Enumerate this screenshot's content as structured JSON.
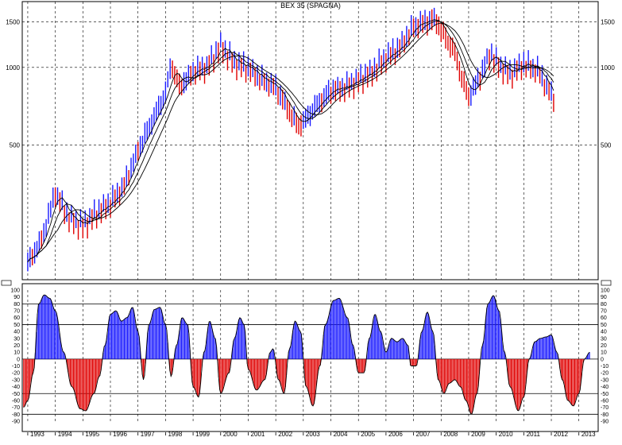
{
  "chart_data": [
    {
      "type": "line",
      "title": "BEX 35 (SPAGNA)",
      "ylabel": "",
      "xlabel": "",
      "scale": "log",
      "ylim": [
        150,
        1800
      ],
      "y_ticks": [
        1500,
        1000,
        500
      ],
      "x_ticks": [
        "1993",
        "1994",
        "1995",
        "1996",
        "1997",
        "1998",
        "1999",
        "2000",
        "2001",
        "2002",
        "2003",
        "2004",
        "2005",
        "2006",
        "2007",
        "2008",
        "2009",
        "2010",
        "2011",
        "2012",
        "2013"
      ],
      "grid": true,
      "bar_colors": {
        "up": "#1a1aff",
        "down": "#e00000"
      },
      "ma_color": "#000000",
      "series": [
        {
          "style": "price-bars",
          "points": [
            [
              1993.0,
              175
            ],
            [
              1993.5,
              215
            ],
            [
              1994.0,
              330
            ],
            [
              1994.5,
              262
            ],
            [
              1995.0,
              245
            ],
            [
              1995.5,
              275
            ],
            [
              1996.0,
              300
            ],
            [
              1996.5,
              350
            ],
            [
              1997.0,
              480
            ],
            [
              1997.5,
              620
            ],
            [
              1998.0,
              800
            ],
            [
              1998.2,
              1040
            ],
            [
              1998.5,
              850
            ],
            [
              1998.8,
              910
            ],
            [
              1999.0,
              970
            ],
            [
              1999.5,
              1010
            ],
            [
              2000.0,
              1220
            ],
            [
              2000.5,
              1050
            ],
            [
              2001.0,
              1000
            ],
            [
              2001.5,
              900
            ],
            [
              2002.0,
              840
            ],
            [
              2002.5,
              680
            ],
            [
              2002.8,
              600
            ],
            [
              2003.0,
              620
            ],
            [
              2003.5,
              720
            ],
            [
              2004.0,
              820
            ],
            [
              2004.5,
              840
            ],
            [
              2005.0,
              900
            ],
            [
              2005.5,
              970
            ],
            [
              2006.0,
              1100
            ],
            [
              2006.5,
              1200
            ],
            [
              2007.0,
              1450
            ],
            [
              2007.5,
              1520
            ],
            [
              2007.8,
              1550
            ],
            [
              2008.0,
              1400
            ],
            [
              2008.5,
              1150
            ],
            [
              2008.8,
              880
            ],
            [
              2009.0,
              780
            ],
            [
              2009.3,
              880
            ],
            [
              2009.8,
              1150
            ],
            [
              2010.0,
              1050
            ],
            [
              2010.5,
              950
            ],
            [
              2011.0,
              1040
            ],
            [
              2011.5,
              980
            ],
            [
              2012.0,
              790
            ],
            [
              2012.1,
              760
            ]
          ]
        },
        {
          "style": "moving-average",
          "period": "fast"
        },
        {
          "style": "moving-average",
          "period": "medium"
        },
        {
          "style": "moving-average",
          "period": "slow"
        }
      ]
    },
    {
      "type": "bar",
      "title": "",
      "ylabel": "",
      "xlabel": "",
      "ylim": [
        -90,
        100
      ],
      "y_ticks": [
        100,
        90,
        80,
        70,
        60,
        50,
        40,
        30,
        20,
        10,
        0,
        -10,
        -20,
        -30,
        -40,
        -50,
        -60,
        -70,
        -80,
        -90
      ],
      "reference_lines": [
        80,
        50,
        0,
        -50,
        -80
      ],
      "series": [
        {
          "style": "oscillator",
          "points": [
            [
              1992.85,
              -70
            ],
            [
              1993.0,
              -60
            ],
            [
              1993.2,
              -20
            ],
            [
              1993.4,
              80
            ],
            [
              1993.6,
              93
            ],
            [
              1993.8,
              88
            ],
            [
              1994.0,
              70
            ],
            [
              1994.3,
              10
            ],
            [
              1994.6,
              -40
            ],
            [
              1994.9,
              -72
            ],
            [
              1995.1,
              -75
            ],
            [
              1995.4,
              -50
            ],
            [
              1995.6,
              -25
            ],
            [
              1995.8,
              20
            ],
            [
              1996.0,
              65
            ],
            [
              1996.2,
              70
            ],
            [
              1996.4,
              55
            ],
            [
              1996.6,
              60
            ],
            [
              1996.8,
              75
            ],
            [
              1997.0,
              40
            ],
            [
              1997.2,
              -30
            ],
            [
              1997.4,
              50
            ],
            [
              1997.6,
              72
            ],
            [
              1997.8,
              75
            ],
            [
              1998.0,
              50
            ],
            [
              1998.2,
              -25
            ],
            [
              1998.4,
              20
            ],
            [
              1998.6,
              60
            ],
            [
              1998.8,
              50
            ],
            [
              1999.0,
              -40
            ],
            [
              1999.2,
              -55
            ],
            [
              1999.4,
              10
            ],
            [
              1999.6,
              55
            ],
            [
              1999.8,
              30
            ],
            [
              2000.0,
              -50
            ],
            [
              2000.3,
              -20
            ],
            [
              2000.5,
              30
            ],
            [
              2000.7,
              60
            ],
            [
              2000.85,
              50
            ],
            [
              2001.0,
              -15
            ],
            [
              2001.3,
              -45
            ],
            [
              2001.6,
              -30
            ],
            [
              2001.8,
              10
            ],
            [
              2001.9,
              15
            ],
            [
              2002.1,
              -30
            ],
            [
              2002.3,
              -50
            ],
            [
              2002.5,
              15
            ],
            [
              2002.7,
              55
            ],
            [
              2002.9,
              40
            ],
            [
              2003.1,
              -40
            ],
            [
              2003.35,
              -68
            ],
            [
              2003.6,
              -10
            ],
            [
              2003.8,
              50
            ],
            [
              2004.1,
              85
            ],
            [
              2004.3,
              88
            ],
            [
              2004.6,
              60
            ],
            [
              2004.8,
              20
            ],
            [
              2005.0,
              -20
            ],
            [
              2005.2,
              -20
            ],
            [
              2005.4,
              30
            ],
            [
              2005.6,
              65
            ],
            [
              2005.8,
              40
            ],
            [
              2006.0,
              10
            ],
            [
              2006.2,
              30
            ],
            [
              2006.4,
              25
            ],
            [
              2006.6,
              30
            ],
            [
              2006.8,
              20
            ],
            [
              2006.9,
              -10
            ],
            [
              2007.1,
              -10
            ],
            [
              2007.3,
              40
            ],
            [
              2007.5,
              68
            ],
            [
              2007.7,
              40
            ],
            [
              2007.9,
              -30
            ],
            [
              2008.1,
              -50
            ],
            [
              2008.3,
              -35
            ],
            [
              2008.5,
              -30
            ],
            [
              2008.7,
              -40
            ],
            [
              2008.9,
              -60
            ],
            [
              2009.1,
              -80
            ],
            [
              2009.3,
              -50
            ],
            [
              2009.5,
              20
            ],
            [
              2009.7,
              80
            ],
            [
              2009.9,
              92
            ],
            [
              2010.1,
              70
            ],
            [
              2010.3,
              10
            ],
            [
              2010.5,
              -40
            ],
            [
              2010.8,
              -75
            ],
            [
              2011.0,
              -55
            ],
            [
              2011.2,
              0
            ],
            [
              2011.4,
              25
            ],
            [
              2011.6,
              30
            ],
            [
              2011.8,
              32
            ],
            [
              2012.0,
              35
            ],
            [
              2012.2,
              10
            ],
            [
              2012.4,
              -30
            ],
            [
              2012.6,
              -60
            ],
            [
              2012.8,
              -68
            ],
            [
              2013.0,
              -50
            ],
            [
              2013.2,
              0
            ],
            [
              2013.4,
              10
            ]
          ]
        }
      ]
    }
  ]
}
